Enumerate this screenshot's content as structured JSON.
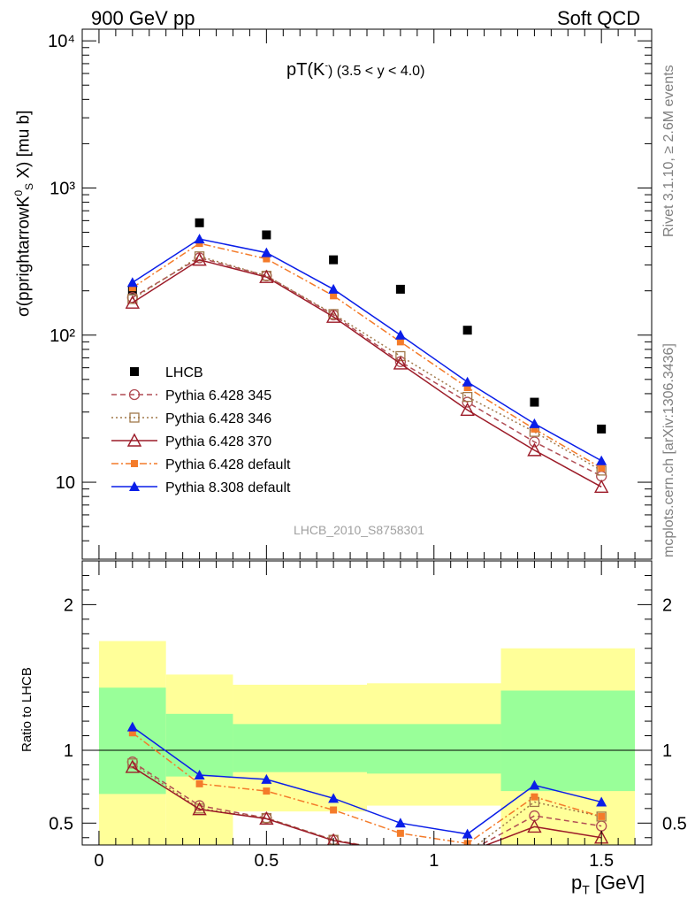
{
  "header": {
    "left": "900 GeV pp",
    "right": "Soft QCD"
  },
  "side_labels": {
    "version": "Rivet 3.1.10, ≥ 2.6M events",
    "site": "mcplots.cern.ch [arXiv:1306.3436]"
  },
  "chart_data": [
    {
      "type": "line",
      "title_main": "pT(K",
      "title_sup": "-",
      "title_tail": ") (3.5 < y < 4.0)",
      "ylabel": "σ(pprightarrowK",
      "ylabel_sup": "0",
      "ylabel_sub": "S",
      "ylabel_tail": " X) [mu b]",
      "yscale": "log",
      "ylim": [
        3,
        12000
      ],
      "xlim": [
        -0.05,
        1.65
      ],
      "y_ticks": [
        "10",
        "10²",
        "10³",
        "10⁴"
      ],
      "analysis_label": "LHCB_2010_S8758301",
      "x": [
        0.1,
        0.3,
        0.5,
        0.7,
        0.9,
        1.1,
        1.3,
        1.5
      ],
      "series": [
        {
          "name": "LHCB",
          "color": "#000000",
          "marker": "square",
          "values": [
            200,
            580,
            480,
            325,
            205,
            108,
            35,
            23
          ]
        },
        {
          "name": "Pythia 6.428 345",
          "color": "#b04c54",
          "marker": "open-circle",
          "line": "dash",
          "values": [
            180,
            335,
            253,
            137,
            66,
            35,
            18.8,
            11
          ]
        },
        {
          "name": "Pythia 6.428 346",
          "color": "#a0784a",
          "marker": "open-square",
          "line": "dot",
          "values": [
            176,
            343,
            253,
            139,
            72,
            38,
            22,
            12
          ]
        },
        {
          "name": "Pythia 6.428 370",
          "color": "#9c1b28",
          "marker": "open-triangle",
          "line": "solid",
          "values": [
            166,
            325,
            248,
            133,
            64,
            31,
            16.5,
            9.3
          ]
        },
        {
          "name": "Pythia 6.428 default",
          "color": "#f47b2a",
          "marker": "filled-square",
          "line": "dashdot",
          "values": [
            210,
            420,
            330,
            185,
            90,
            44,
            23,
            12.5
          ]
        },
        {
          "name": "Pythia 8.308 default",
          "color": "#0a1ee8",
          "marker": "filled-triangle",
          "line": "solid",
          "values": [
            228,
            450,
            363,
            205,
            100,
            48,
            25,
            14
          ]
        }
      ]
    },
    {
      "type": "line",
      "ylabel": "Ratio to LHCB",
      "xlabel": "p",
      "xlabel_sub": "T",
      "xlabel_tail": " [GeV]",
      "ylim": [
        0.35,
        2.3
      ],
      "xlim": [
        -0.05,
        1.65
      ],
      "x_ticks": [
        "0",
        "0.5",
        "1",
        "1.5"
      ],
      "y_ticks": [
        "0.5",
        "1",
        "2"
      ],
      "uncertainty_bins": [
        {
          "x0": 0.0,
          "x1": 0.2,
          "stat": [
            0.7,
            1.43
          ],
          "total": [
            0.3,
            1.75
          ]
        },
        {
          "x0": 0.2,
          "x1": 0.4,
          "stat": [
            0.82,
            1.25
          ],
          "total": [
            0.3,
            1.52
          ]
        },
        {
          "x0": 0.4,
          "x1": 0.8,
          "stat": [
            0.85,
            1.18
          ],
          "total": [
            0.58,
            1.45
          ]
        },
        {
          "x0": 0.8,
          "x1": 1.2,
          "stat": [
            0.84,
            1.18
          ],
          "total": [
            0.62,
            1.46
          ]
        },
        {
          "x0": 1.2,
          "x1": 1.6,
          "stat": [
            0.72,
            1.41
          ],
          "total": [
            0.3,
            1.7
          ]
        }
      ],
      "ratio_series": [
        {
          "name": "Pythia 6.428 345",
          "values": [
            0.92,
            0.62,
            0.535,
            0.385,
            0.3,
            0.3,
            0.55,
            0.48
          ]
        },
        {
          "name": "Pythia 6.428 346",
          "values": [
            0.91,
            0.6,
            0.535,
            0.385,
            0.3,
            0.3,
            0.645,
            0.545
          ]
        },
        {
          "name": "Pythia 6.428 370",
          "values": [
            0.885,
            0.595,
            0.53,
            0.38,
            0.3,
            0.3,
            0.475,
            0.4
          ]
        },
        {
          "name": "Pythia 6.428 default",
          "values": [
            1.12,
            0.77,
            0.72,
            0.59,
            0.43,
            0.36,
            0.68,
            0.545
          ]
        },
        {
          "name": "Pythia 8.308 default",
          "values": [
            1.16,
            0.83,
            0.8,
            0.67,
            0.5,
            0.425,
            0.76,
            0.645
          ]
        }
      ]
    }
  ]
}
